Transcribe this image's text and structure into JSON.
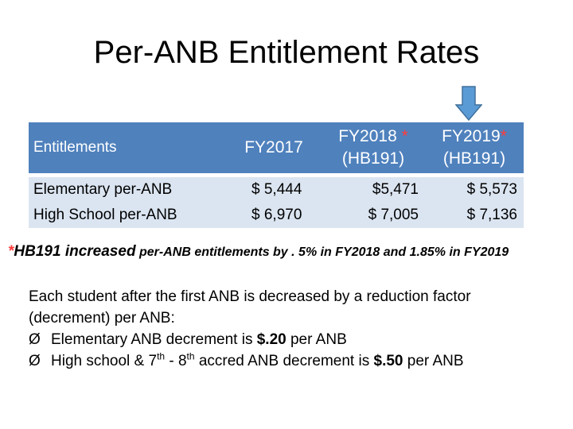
{
  "title": "Per-ANB Entitlement Rates",
  "table": {
    "headers": {
      "col1": "Entitlements",
      "col2": "FY2017",
      "col3_line1": "FY2018",
      "col3_star": " *",
      "col3_line2": "(HB191)",
      "col4_line1": "FY2019",
      "col4_star": "*",
      "col4_line2": "(HB191)"
    },
    "rows": [
      {
        "label": "Elementary per-ANB",
        "fy2017": "$ 5,444",
        "fy2018": "$5,471",
        "fy2019": "$ 5,573"
      },
      {
        "label": "High School per-ANB",
        "fy2017": "$ 6,970",
        "fy2018": "$ 7,005",
        "fy2019": "$ 7,136"
      }
    ],
    "header_color": "#4f81bd",
    "row_color": "#dbe5f1"
  },
  "footnote": {
    "star": "*",
    "lead": "HB191 increased",
    "rest": " per-ANB entitlements by . 5% in FY2018 and 1.85% in FY2019"
  },
  "paragraph": {
    "line1": "Each student after the first ANB is decreased by a reduction factor",
    "line2": "(decrement) per ANB:",
    "bullet_mark": "Ø",
    "bullet1_pre": "Elementary ANB decrement is ",
    "bullet1_value": "$.20",
    "bullet1_post": " per ANB",
    "bullet2_pre": "High school & 7",
    "bullet2_sup1": "th",
    "bullet2_mid": " - 8",
    "bullet2_sup2": "th",
    "bullet2_mid2": " accred ANB decrement is ",
    "bullet2_value": "$.50",
    "bullet2_post": " per ANB"
  },
  "icons": {
    "arrow": "down-arrow-icon",
    "arrow_color": "#5b9bd5"
  }
}
